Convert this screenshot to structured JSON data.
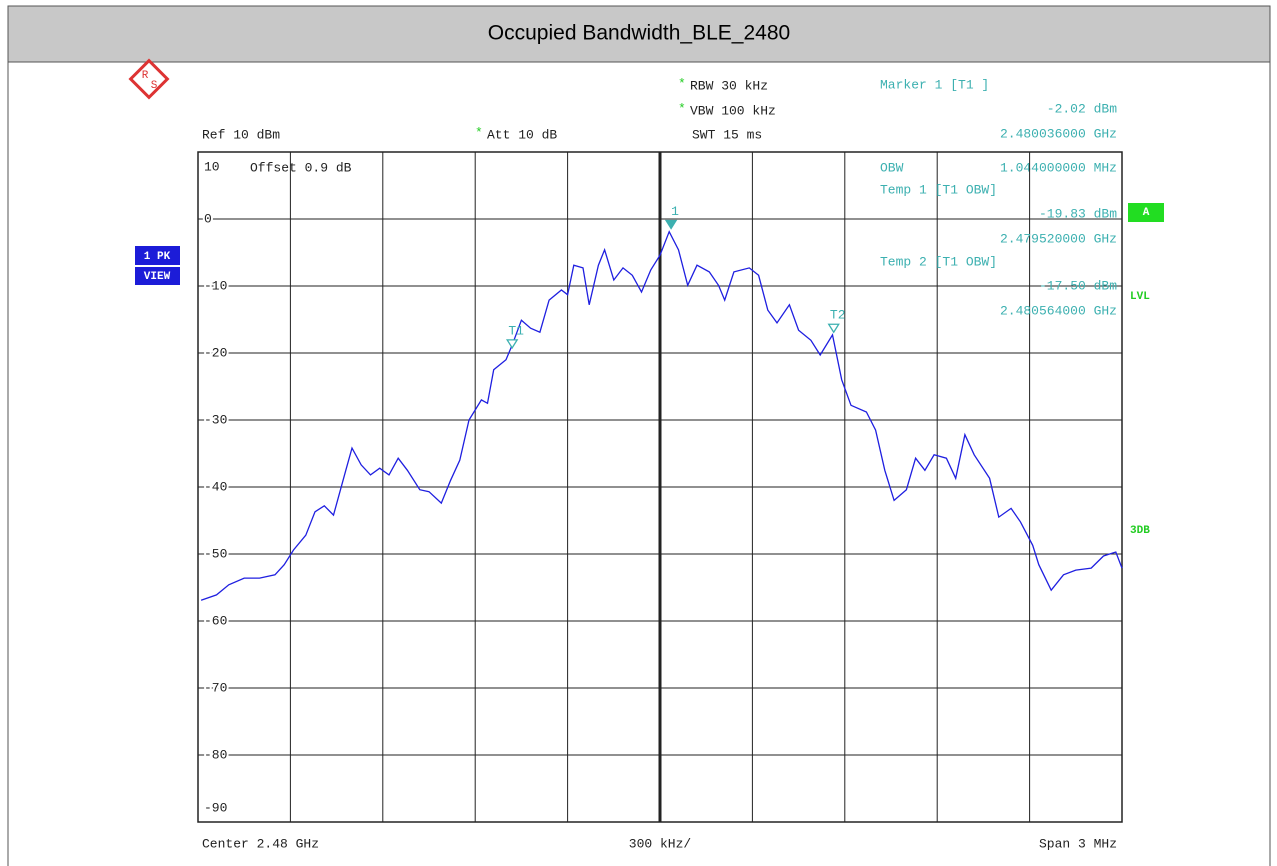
{
  "chart_data": {
    "type": "line",
    "title": "Occupied Bandwidth_BLE_2480",
    "logo": [
      "R",
      "S"
    ],
    "flag": "*",
    "rbw": "RBW 30 kHz",
    "vbw": "VBW 100 kHz",
    "swt": "SWT 15 ms",
    "ref": "Ref 10 dBm",
    "att": "Att 10 dB",
    "offset": "Offset 0.9 dB",
    "trace_labels": [
      "1 PK",
      "VIEW"
    ],
    "side_labels": {
      "a": "A",
      "lvl": "LVL",
      "db3": "3DB"
    },
    "obw_label": "OBW",
    "obw_value": "1.044000000 MHz",
    "footer": {
      "center": "Center 2.48 GHz",
      "div": "300 kHz/",
      "span": "Span 3 MHz"
    },
    "xlim": [
      2.4785,
      2.4815
    ],
    "ylim": [
      -90,
      10
    ],
    "yticks": [
      -90,
      -80,
      -70,
      -60,
      -50,
      -40,
      -30,
      -20,
      -10,
      0,
      10
    ],
    "grid": true,
    "x": [
      2.47851,
      2.47856,
      2.4786,
      2.47865,
      2.4787,
      2.47875,
      2.47878,
      2.47881,
      2.47885,
      2.47888,
      2.47891,
      2.47894,
      2.47898,
      2.479,
      2.47903,
      2.47906,
      2.47909,
      2.47912,
      2.47915,
      2.47918,
      2.47922,
      2.47925,
      2.47929,
      2.47932,
      2.47935,
      2.47938,
      2.47942,
      2.47944,
      2.47946,
      2.4795,
      2.47952,
      2.47955,
      2.47958,
      2.47961,
      2.47964,
      2.47968,
      2.4797,
      2.47972,
      2.47975,
      2.47977,
      2.4798,
      2.47982,
      2.47985,
      2.47988,
      2.47991,
      2.47994,
      2.47997,
      2.48,
      2.48003,
      2.48006,
      2.48009,
      2.48012,
      2.48016,
      2.48019,
      2.48021,
      2.48024,
      2.48029,
      2.48032,
      2.48035,
      2.48038,
      2.48042,
      2.48045,
      2.48049,
      2.48052,
      2.48056,
      2.48059,
      2.48062,
      2.48067,
      2.4807,
      2.48073,
      2.48076,
      2.4808,
      2.48083,
      2.48086,
      2.48089,
      2.48093,
      2.48096,
      2.48099,
      2.48102,
      2.48107,
      2.4811,
      2.48114,
      2.48117,
      2.48121,
      2.48123,
      2.48127,
      2.48131,
      2.48135,
      2.4814,
      2.48144,
      2.48148,
      2.4815
    ],
    "series": [
      {
        "color": "#1f1fe0",
        "values": [
          -56.9,
          -56.1,
          -54.6,
          -53.6,
          -53.6,
          -53.1,
          -51.6,
          -49.4,
          -47.2,
          -43.7,
          -42.8,
          -44.2,
          -37.5,
          -34.2,
          -36.7,
          -38.2,
          -37.2,
          -38.2,
          -35.7,
          -37.5,
          -40.4,
          -40.7,
          -42.4,
          -39.0,
          -36.0,
          -30.0,
          -27.0,
          -27.5,
          -22.5,
          -21.0,
          -18.8,
          -15.1,
          -16.3,
          -16.9,
          -12.1,
          -10.6,
          -11.3,
          -6.9,
          -7.3,
          -12.8,
          -6.9,
          -4.6,
          -9.1,
          -7.3,
          -8.4,
          -10.9,
          -7.6,
          -5.4,
          -1.9,
          -4.6,
          -9.9,
          -6.9,
          -7.9,
          -9.9,
          -12.1,
          -7.9,
          -7.3,
          -8.4,
          -13.6,
          -15.5,
          -12.8,
          -16.6,
          -18.1,
          -20.3,
          -17.3,
          -24.0,
          -27.8,
          -28.8,
          -31.5,
          -37.5,
          -42.0,
          -40.4,
          -35.7,
          -37.5,
          -35.2,
          -35.7,
          -38.7,
          -32.2,
          -35.2,
          -38.7,
          -44.5,
          -43.2,
          -45.2,
          -48.7,
          -51.6,
          -55.4,
          -53.1,
          -52.4,
          -52.1,
          -50.3,
          -49.7,
          -52.1
        ]
      }
    ],
    "markers": [
      {
        "name": "Marker 1 [T1 ]",
        "label": "1",
        "x": 2.480036,
        "value": -2.02,
        "value_label": "-2.02 dBm",
        "x_label": "2.480036000 GHz",
        "filled": true
      },
      {
        "name": "Temp 1 [T1 OBW]",
        "label": "T1",
        "x": 2.47952,
        "value": -19.83,
        "value_label": "-19.83 dBm",
        "x_label": "2.479520000 GHz",
        "filled": false
      },
      {
        "name": "Temp 2 [T1 OBW]",
        "label": "T2",
        "x": 2.480564,
        "value": -17.5,
        "value_label": "-17.50 dBm",
        "x_label": "2.480564000 GHz",
        "filled": false
      }
    ],
    "marker_color": "#3cb0b0",
    "flag_color": "#22cc22"
  }
}
